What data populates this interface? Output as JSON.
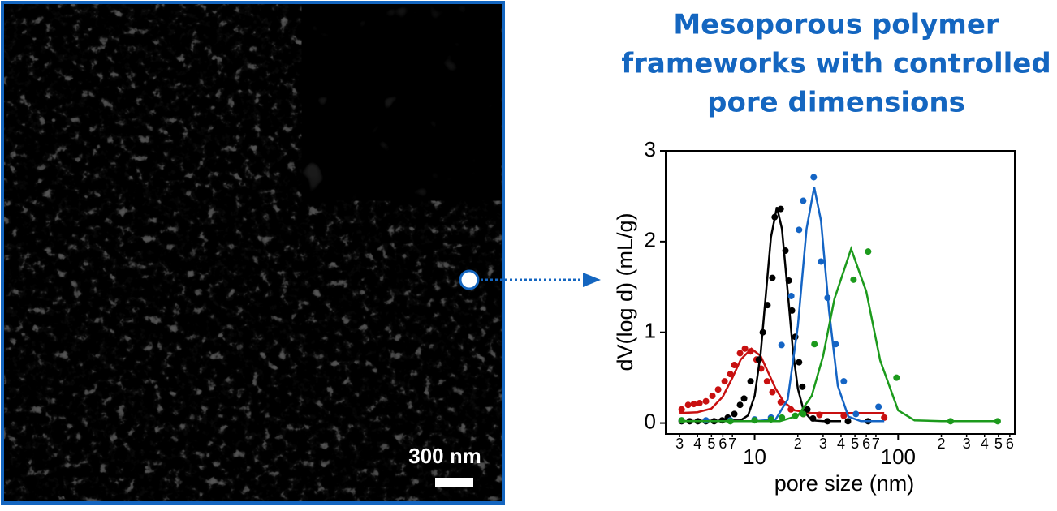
{
  "image": {
    "scale_label": "300 nm"
  },
  "chart_data": {
    "type": "scatter",
    "title": [
      "Mesoporous polymer",
      "frameworks with controlled",
      "pore dimensions"
    ],
    "xlabel": "pore size (nm)",
    "ylabel": "dV(log d)  (mL/g)",
    "xscale": "log",
    "xlim": [
      2.4,
      650
    ],
    "ylim": [
      -0.12,
      3
    ],
    "xticks": [
      10,
      100
    ],
    "xticks_minor": [
      3,
      4,
      5,
      6,
      7,
      {
        "value": 20,
        "label": "2"
      },
      {
        "value": 30,
        "label": "3"
      },
      {
        "value": 40,
        "label": "4"
      },
      {
        "value": 50,
        "label": "5"
      },
      {
        "value": 60,
        "label": "6"
      },
      {
        "value": 70,
        "label": "7"
      },
      {
        "value": 200,
        "label": "2"
      },
      {
        "value": 300,
        "label": "3"
      },
      {
        "value": 400,
        "label": "4"
      },
      {
        "value": 500,
        "label": "5"
      },
      {
        "value": 600,
        "label": "6"
      }
    ],
    "yticks": [
      0,
      1,
      2,
      3
    ],
    "series": [
      {
        "color": "#c81010",
        "x": [
          3.1,
          3.44,
          3.77,
          4.13,
          4.58,
          5.08,
          5.57,
          6.18,
          6.77,
          7.22,
          7.91,
          8.56,
          9.37,
          10.3,
          11.1,
          12.2,
          13.3,
          15.2,
          17.9,
          21.8,
          28.3,
          41.8,
          80
        ],
        "values": [
          0.15,
          0.2,
          0.21,
          0.22,
          0.24,
          0.3,
          0.37,
          0.46,
          0.54,
          0.64,
          0.77,
          0.82,
          0.79,
          0.7,
          0.6,
          0.46,
          0.34,
          0.23,
          0.15,
          0.1,
          0.09,
          0.08,
          0.06
        ],
        "fit_x": [
          3,
          4,
          5,
          6,
          7,
          8,
          9.5,
          11,
          12.5,
          14,
          16,
          19,
          25,
          40,
          80
        ],
        "fit_values": [
          0.11,
          0.12,
          0.16,
          0.29,
          0.5,
          0.7,
          0.82,
          0.74,
          0.55,
          0.38,
          0.23,
          0.14,
          0.11,
          0.11,
          0.11
        ]
      },
      {
        "color": "#000000",
        "x": [
          3.1,
          3.53,
          4.02,
          4.58,
          5.22,
          5.94,
          6.5,
          7.22,
          7.91,
          8.44,
          9.37,
          10.7,
          11.4,
          12.3,
          13.3,
          13.8,
          15.2,
          16.4,
          17.3,
          18.2,
          19.2,
          20.4,
          21.5,
          23.3,
          25.5,
          32.2,
          44.7,
          61.8
        ],
        "values": [
          0.02,
          0.02,
          0.02,
          0.02,
          0.02,
          0.03,
          0.06,
          0.1,
          0.2,
          0.27,
          0.46,
          0.7,
          1.0,
          1.3,
          1.6,
          2.27,
          2.36,
          1.9,
          1.57,
          1.24,
          0.95,
          0.67,
          0.4,
          0.15,
          0.05,
          0.02,
          0.02,
          0.02
        ],
        "fit_x": [
          3,
          8,
          9,
          10,
          11,
          12,
          13,
          14.3,
          15.5,
          17,
          18.5,
          20,
          22,
          25,
          30,
          40
        ],
        "fit_values": [
          0.02,
          0.03,
          0.085,
          0.3,
          0.76,
          1.43,
          2.05,
          2.38,
          2.14,
          1.45,
          0.79,
          0.38,
          0.13,
          0.03,
          0.02,
          0.02
        ]
      },
      {
        "color": "#1464c4",
        "x": [
          3.1,
          4.58,
          6.77,
          10,
          13,
          15.4,
          18,
          20.4,
          21.8,
          25.8,
          29,
          32.2,
          36.7,
          41.8,
          50.8,
          73
        ],
        "values": [
          0.03,
          0.03,
          0.03,
          0.04,
          0.06,
          0.86,
          1.4,
          2.13,
          2.45,
          2.71,
          1.78,
          1.38,
          0.87,
          0.46,
          0.1,
          0.18
        ],
        "fit_x": [
          3,
          10,
          14,
          17,
          20,
          23,
          26,
          29,
          33,
          38,
          45,
          55,
          80
        ],
        "fit_values": [
          0.02,
          0.02,
          0.04,
          0.26,
          1.07,
          2.14,
          2.6,
          2.23,
          1.24,
          0.41,
          0.07,
          0.02,
          0.02
        ]
      },
      {
        "color": "#1c9a1c",
        "x": [
          3.1,
          6.77,
          10,
          13,
          15.5,
          19.2,
          21.8,
          26.1,
          48.9,
          61.8,
          97.4,
          232,
          494
        ],
        "values": [
          0.03,
          0.02,
          0.03,
          0.04,
          0.06,
          0.08,
          0.1,
          0.87,
          1.58,
          1.89,
          0.5,
          0.02,
          0.02
        ],
        "fit_x": [
          3,
          10,
          15,
          20,
          25,
          30,
          36,
          47,
          60,
          75,
          100,
          130,
          200,
          500
        ],
        "fit_values": [
          0.02,
          0.02,
          0.02,
          0.08,
          0.3,
          0.74,
          1.37,
          1.92,
          1.45,
          0.69,
          0.14,
          0.03,
          0.02,
          0.02
        ]
      }
    ]
  }
}
